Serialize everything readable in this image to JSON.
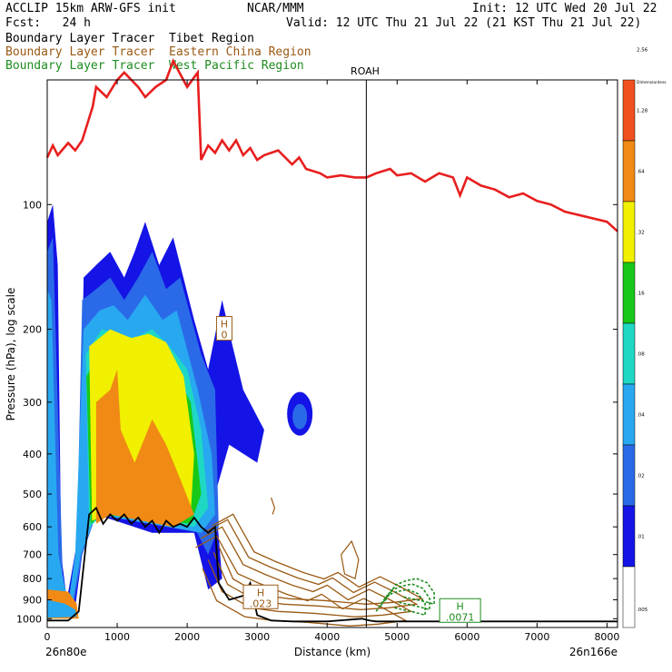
{
  "header": {
    "model": "ACCLIP 15km ARW-GFS init",
    "org": "NCAR/MMM",
    "init": "Init: 12 UTC Wed 20 Jul 22",
    "fcst": "Fcst:   24 h",
    "valid": "Valid: 12 UTC Thu 21 Jul 22 (21 KST Thu 21 Jul 22)",
    "legend": [
      {
        "prefix": "Boundary Layer Tracer",
        "region": "Tibet Region",
        "color": "#000000"
      },
      {
        "prefix": "Boundary Layer Tracer",
        "region": "Eastern China Region",
        "color": "#9a5a14"
      },
      {
        "prefix": "Boundary Layer Tracer",
        "region": "West Pacific Region",
        "color": "#1e8c1e"
      }
    ]
  },
  "chart_data": {
    "type": "heatmap",
    "xlabel": "Distance (km)",
    "ylabel": "Pressure (hPa), log scale",
    "x_ticks": [
      0,
      1000,
      2000,
      3000,
      4000,
      5000,
      6000,
      7000,
      8000
    ],
    "y_ticks": [
      100,
      200,
      300,
      400,
      500,
      600,
      700,
      800,
      900,
      1000
    ],
    "x_range": [
      0,
      8150
    ],
    "y_range_hPa": [
      1050,
      50
    ],
    "y_scale": "log",
    "left_endpoint": "26n80e",
    "right_endpoint": "26n166e",
    "marker": {
      "label": "ROAH",
      "x_km": 4560
    },
    "colorbar": {
      "title": "Dimensionless",
      "levels": [
        ".005",
        ".01",
        ".02",
        ".04",
        ".08",
        ".16",
        ".32",
        ".64",
        "1.28",
        "2.56"
      ],
      "colors": [
        "#ffffff",
        "#1414e6",
        "#2a6ae8",
        "#28a8f0",
        "#1ed8c4",
        "#18c818",
        "#f0f000",
        "#f08a14",
        "#f0501e"
      ]
    },
    "red_line": {
      "name": "tropopause",
      "color": "#e81e1e",
      "x": [
        0,
        80,
        150,
        300,
        400,
        500,
        650,
        700,
        850,
        1000,
        1100,
        1300,
        1400,
        1550,
        1700,
        1800,
        2000,
        2150,
        2200,
        2300,
        2400,
        2500,
        2600,
        2700,
        2800,
        2900,
        3000,
        3100,
        3300,
        3500,
        3600,
        3700,
        3900,
        4000,
        4200,
        4400,
        4560,
        4700,
        4900,
        5000,
        5200,
        5400,
        5600,
        5800,
        5900,
        6000,
        6200,
        6400,
        6600,
        6800,
        7000,
        7200,
        7400,
        7600,
        7800,
        8000,
        8150
      ],
      "y_hPa": [
        77,
        72,
        76,
        71,
        74,
        70,
        58,
        52,
        55,
        50,
        48,
        52,
        55,
        52,
        50,
        45,
        52,
        48,
        78,
        72,
        75,
        70,
        74,
        70,
        76,
        73,
        78,
        76,
        74,
        80,
        77,
        82,
        84,
        86,
        85,
        86,
        86,
        84,
        82,
        85,
        84,
        88,
        84,
        86,
        95,
        86,
        90,
        92,
        96,
        94,
        98,
        100,
        104,
        106,
        108,
        110,
        116
      ]
    },
    "black_line": {
      "name": "terrain",
      "color": "#000000",
      "x": [
        0,
        300,
        450,
        600,
        700,
        800,
        900,
        1000,
        1100,
        1200,
        1300,
        1400,
        1500,
        1600,
        1700,
        1800,
        1900,
        2000,
        2100,
        2200,
        2300,
        2400,
        2450,
        2600,
        2800,
        2900,
        3000,
        3200,
        3500,
        4000,
        4500,
        4600,
        4700,
        5000,
        6000,
        7000,
        8150
      ],
      "y_hPa": [
        1010,
        1010,
        960,
        560,
        540,
        590,
        560,
        580,
        560,
        590,
        570,
        600,
        580,
        620,
        580,
        600,
        590,
        600,
        570,
        600,
        620,
        600,
        820,
        900,
        880,
        820,
        980,
        1010,
        1015,
        1015,
        1000,
        1010,
        1015,
        1015,
        1015,
        1015,
        1015
      ]
    },
    "annotations": [
      {
        "text": "H",
        "sub": ".023",
        "x_km": 3050,
        "y_hPa": 890,
        "color": "#9a5a14"
      },
      {
        "text": "H",
        "sub": ".0071",
        "x_km": 5900,
        "y_hPa": 960,
        "color": "#1e8c1e"
      },
      {
        "text": "H",
        "sub": "0",
        "x_km": 2530,
        "y_hPa": 200,
        "color": "#9a5a14"
      }
    ],
    "tracer_fields": [
      {
        "name": "Tibet Region",
        "x_km_range": [
          0,
          3100
        ],
        "y_hPa_range": [
          100,
          1000
        ],
        "max_level": "1.28"
      },
      {
        "name": "Eastern China Region",
        "x_km_range": [
          2100,
          5200
        ],
        "y_hPa_range": [
          500,
          1000
        ]
      },
      {
        "name": "West Pacific Region",
        "x_km_range": [
          4700,
          5400
        ],
        "y_hPa_range": [
          800,
          1000
        ]
      }
    ]
  }
}
